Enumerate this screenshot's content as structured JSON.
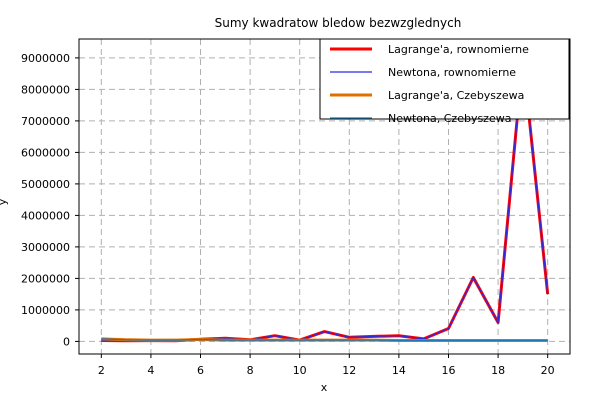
{
  "chart_data": {
    "type": "line",
    "title": "Sumy kwadratow bledow bezwzglednych",
    "xlabel": "x",
    "ylabel": "y",
    "xlim": [
      1.1,
      20.9
    ],
    "ylim": [
      -400000,
      9600000
    ],
    "x_ticks": [
      2,
      4,
      6,
      8,
      10,
      12,
      14,
      16,
      18,
      20
    ],
    "y_ticks": [
      0,
      1000000,
      2000000,
      3000000,
      4000000,
      5000000,
      6000000,
      7000000,
      8000000,
      9000000
    ],
    "y_tick_labels": [
      "0",
      "1000000",
      "2000000",
      "3000000",
      "4000000",
      "5000000",
      "6000000",
      "7000000",
      "8000000",
      "9000000"
    ],
    "x_tick_labels": [
      "2",
      "4",
      "6",
      "8",
      "10",
      "12",
      "14",
      "16",
      "18",
      "20"
    ],
    "grid": true,
    "legend_position": "top-right",
    "x": [
      2,
      3,
      4,
      5,
      6,
      7,
      8,
      9,
      10,
      11,
      12,
      13,
      14,
      15,
      16,
      17,
      18,
      19,
      20
    ],
    "series": [
      {
        "name": "Lagrange'a, rownomierne",
        "color": "#ff0000",
        "width": 3,
        "values": [
          30000,
          20000,
          25000,
          20000,
          70000,
          100000,
          50000,
          180000,
          40000,
          310000,
          130000,
          160000,
          180000,
          80000,
          410000,
          2030000,
          600000,
          9000000,
          1500000
        ]
      },
      {
        "name": "Newtona, rownomierne",
        "color": "#2a2ae0",
        "width": 1.2,
        "values": [
          30000,
          20000,
          25000,
          20000,
          70000,
          100000,
          50000,
          180000,
          40000,
          310000,
          130000,
          160000,
          180000,
          80000,
          410000,
          2030000,
          600000,
          9000000,
          1500000
        ]
      },
      {
        "name": "Lagrange'a, Czebyszewa",
        "color": "#e07000",
        "width": 3,
        "values": [
          80000,
          50000,
          40000,
          40000,
          60000,
          40000,
          40000,
          40000,
          40000,
          40000,
          40000,
          40000,
          30000,
          30000,
          30000,
          30000,
          30000,
          30000,
          30000
        ]
      },
      {
        "name": "Newtona, Czebyszewa",
        "color": "#1f77b4",
        "width": 1.2,
        "values": [
          80000,
          50000,
          40000,
          40000,
          60000,
          40000,
          40000,
          40000,
          40000,
          40000,
          40000,
          40000,
          30000,
          30000,
          30000,
          30000,
          30000,
          30000,
          30000
        ]
      }
    ]
  }
}
